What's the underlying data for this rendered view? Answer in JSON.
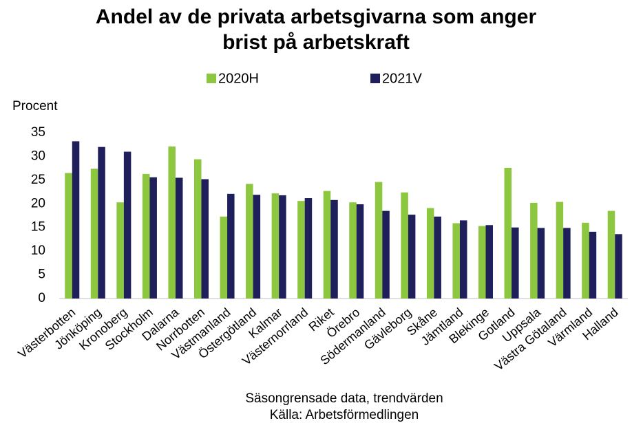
{
  "chart_data": {
    "type": "bar",
    "title": "Andel av de privata arbetsgivarna som anger brist på arbetskraft",
    "y_label": "Procent",
    "subtitle": "Säsongrensade data, trendvärden",
    "source": "Källa: Arbetsförmedlingen",
    "categories": [
      "Västerbotten",
      "Jönköping",
      "Kronoberg",
      "Stockholm",
      "Dalarna",
      "Norrbotten",
      "Västmanland",
      "Östergötland",
      "Kalmar",
      "Västernorrland",
      "Riket",
      "Örebro",
      "Södermanland",
      "Gävleborg",
      "Skåne",
      "Jämtland",
      "Blekinge",
      "Gotland",
      "Uppsala",
      "Västra Götaland",
      "Värmland",
      "Halland"
    ],
    "series": [
      {
        "name": "2020H",
        "color": "#8dc63f",
        "values": [
          26.5,
          27.4,
          20.3,
          26.3,
          32.1,
          29.4,
          17.3,
          24.2,
          22.2,
          20.6,
          22.7,
          20.3,
          24.6,
          22.4,
          19.1,
          15.9,
          15.3,
          27.6,
          20.2,
          20.4,
          16.0,
          18.5
        ]
      },
      {
        "name": "2021V",
        "color": "#1f1f5c",
        "values": [
          33.2,
          32.0,
          31.0,
          25.6,
          25.5,
          25.2,
          22.1,
          21.9,
          21.8,
          21.2,
          20.8,
          19.9,
          18.5,
          17.7,
          17.3,
          16.5,
          15.5,
          15.0,
          14.9,
          14.9,
          14.1,
          13.6
        ]
      }
    ],
    "ylim": [
      0,
      35
    ],
    "yticks": [
      0,
      5,
      10,
      15,
      20,
      25,
      30,
      35
    ],
    "legend": "top",
    "grid": false
  }
}
